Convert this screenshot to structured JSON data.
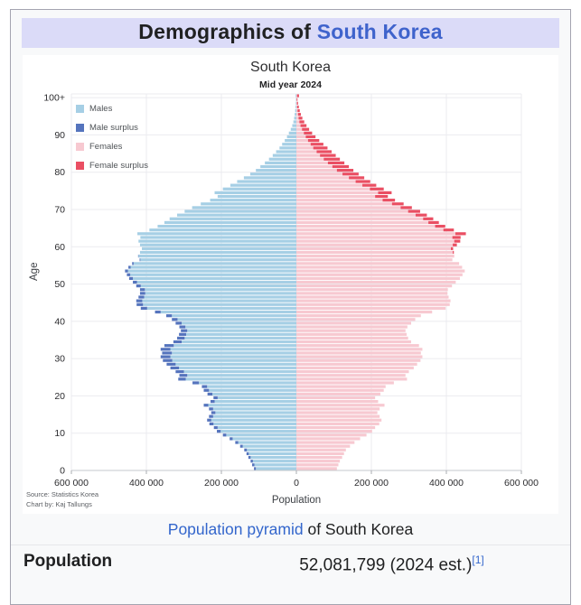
{
  "header": {
    "prefix": "Demographics of ",
    "link": "South Korea"
  },
  "chart": {
    "title": "South Korea",
    "subtitle": "Mid year 2024",
    "ylabel": "Age",
    "xlabel": "Population",
    "source_line1": "Source: Statistics Korea",
    "source_line2": "Chart by: Kaj Tallungs",
    "legend": [
      {
        "label": "Males",
        "color": "#a6cfe5"
      },
      {
        "label": "Male surplus",
        "color": "#5574bd"
      },
      {
        "label": "Females",
        "color": "#f7c9d1"
      },
      {
        "label": "Female surplus",
        "color": "#ea4f63"
      }
    ],
    "x_tick_labels": [
      "600 000",
      "400 000",
      "200 000",
      "0",
      "200 000",
      "400 000",
      "600 000"
    ],
    "y_tick_labels": [
      "0",
      "10",
      "20",
      "30",
      "40",
      "50",
      "60",
      "70",
      "80",
      "90",
      "100+"
    ]
  },
  "chart_data": {
    "type": "bar",
    "subtype": "population-pyramid",
    "title": "South Korea",
    "subtitle": "Mid year 2024",
    "xlabel": "Population",
    "ylabel": "Age",
    "xlim": [
      -600000,
      600000
    ],
    "x_tick_interval": 200000,
    "age_min": 0,
    "age_max_label": "100+",
    "age_gridline_step": 10,
    "legend_position": "top-left",
    "grid": true,
    "note": "Left side = males, right side = females; darker bar tips show the surplus of one sex over the other for that single-year age. Values estimated from chart pixels.",
    "colors": {
      "males": "#a6cfe5",
      "male_surplus": "#5574bd",
      "females": "#f7c9d1",
      "female_surplus": "#ea4f63"
    },
    "series": [
      {
        "name": "Males",
        "values": [
          113000,
          118000,
          122000,
          128000,
          133000,
          139000,
          150000,
          163000,
          178000,
          196000,
          212000,
          220000,
          232000,
          238000,
          233000,
          227000,
          233000,
          247000,
          229000,
          221000,
          237000,
          247000,
          252000,
          277000,
          315000,
          312000,
          322000,
          336000,
          346000,
          356000,
          362000,
          358000,
          362000,
          352000,
          328000,
          318000,
          313000,
          308000,
          312000,
          322000,
          332000,
          347000,
          377000,
          415000,
          426000,
          427000,
          421000,
          417000,
          417000,
          427000,
          436000,
          446000,
          452000,
          457000,
          448000,
          438000,
          418000,
          422000,
          417000,
          412000,
          417000,
          421000,
          416000,
          424000,
          392000,
          370000,
          352000,
          338000,
          318000,
          298000,
          278000,
          255000,
          230000,
          210000,
          218000,
          196000,
          176000,
          158000,
          140000,
          123000,
          108000,
          96000,
          84000,
          73000,
          63000,
          54000,
          45000,
          38000,
          31000,
          25000,
          20000,
          15000,
          11000,
          8000,
          6000,
          4500,
          3200,
          2200,
          1500,
          1000,
          1800
        ]
      },
      {
        "name": "Females",
        "values": [
          108000,
          112000,
          116000,
          122000,
          127000,
          132000,
          143000,
          155000,
          170000,
          187000,
          202000,
          210000,
          221000,
          227000,
          222000,
          216000,
          222000,
          235000,
          218000,
          210000,
          224000,
          233000,
          238000,
          260000,
          295000,
          291000,
          300000,
          313000,
          322000,
          331000,
          336000,
          332000,
          336000,
          327000,
          306000,
          298000,
          294000,
          291000,
          296000,
          306000,
          317000,
          332000,
          362000,
          398000,
          409000,
          411000,
          406000,
          403000,
          404000,
          415000,
          425000,
          436000,
          443000,
          449000,
          442000,
          434000,
          416000,
          421000,
          420000,
          418000,
          428000,
          437000,
          438000,
          452000,
          420000,
          397000,
          380000,
          365000,
          348000,
          330000,
          308000,
          286000,
          263000,
          244000,
          254000,
          233000,
          213000,
          197000,
          181000,
          166000,
          152000,
          140000,
          128000,
          116000,
          105000,
          94000,
          83000,
          72000,
          61000,
          51000,
          42000,
          34000,
          27000,
          21000,
          16000,
          12000,
          9000,
          6500,
          4500,
          3000,
          7000
        ]
      }
    ]
  },
  "caption": {
    "link": "Population pyramid",
    "rest": " of South Korea"
  },
  "population_row": {
    "label": "Population",
    "value": "52,081,799 (2024 est.)",
    "ref": "[1]"
  }
}
